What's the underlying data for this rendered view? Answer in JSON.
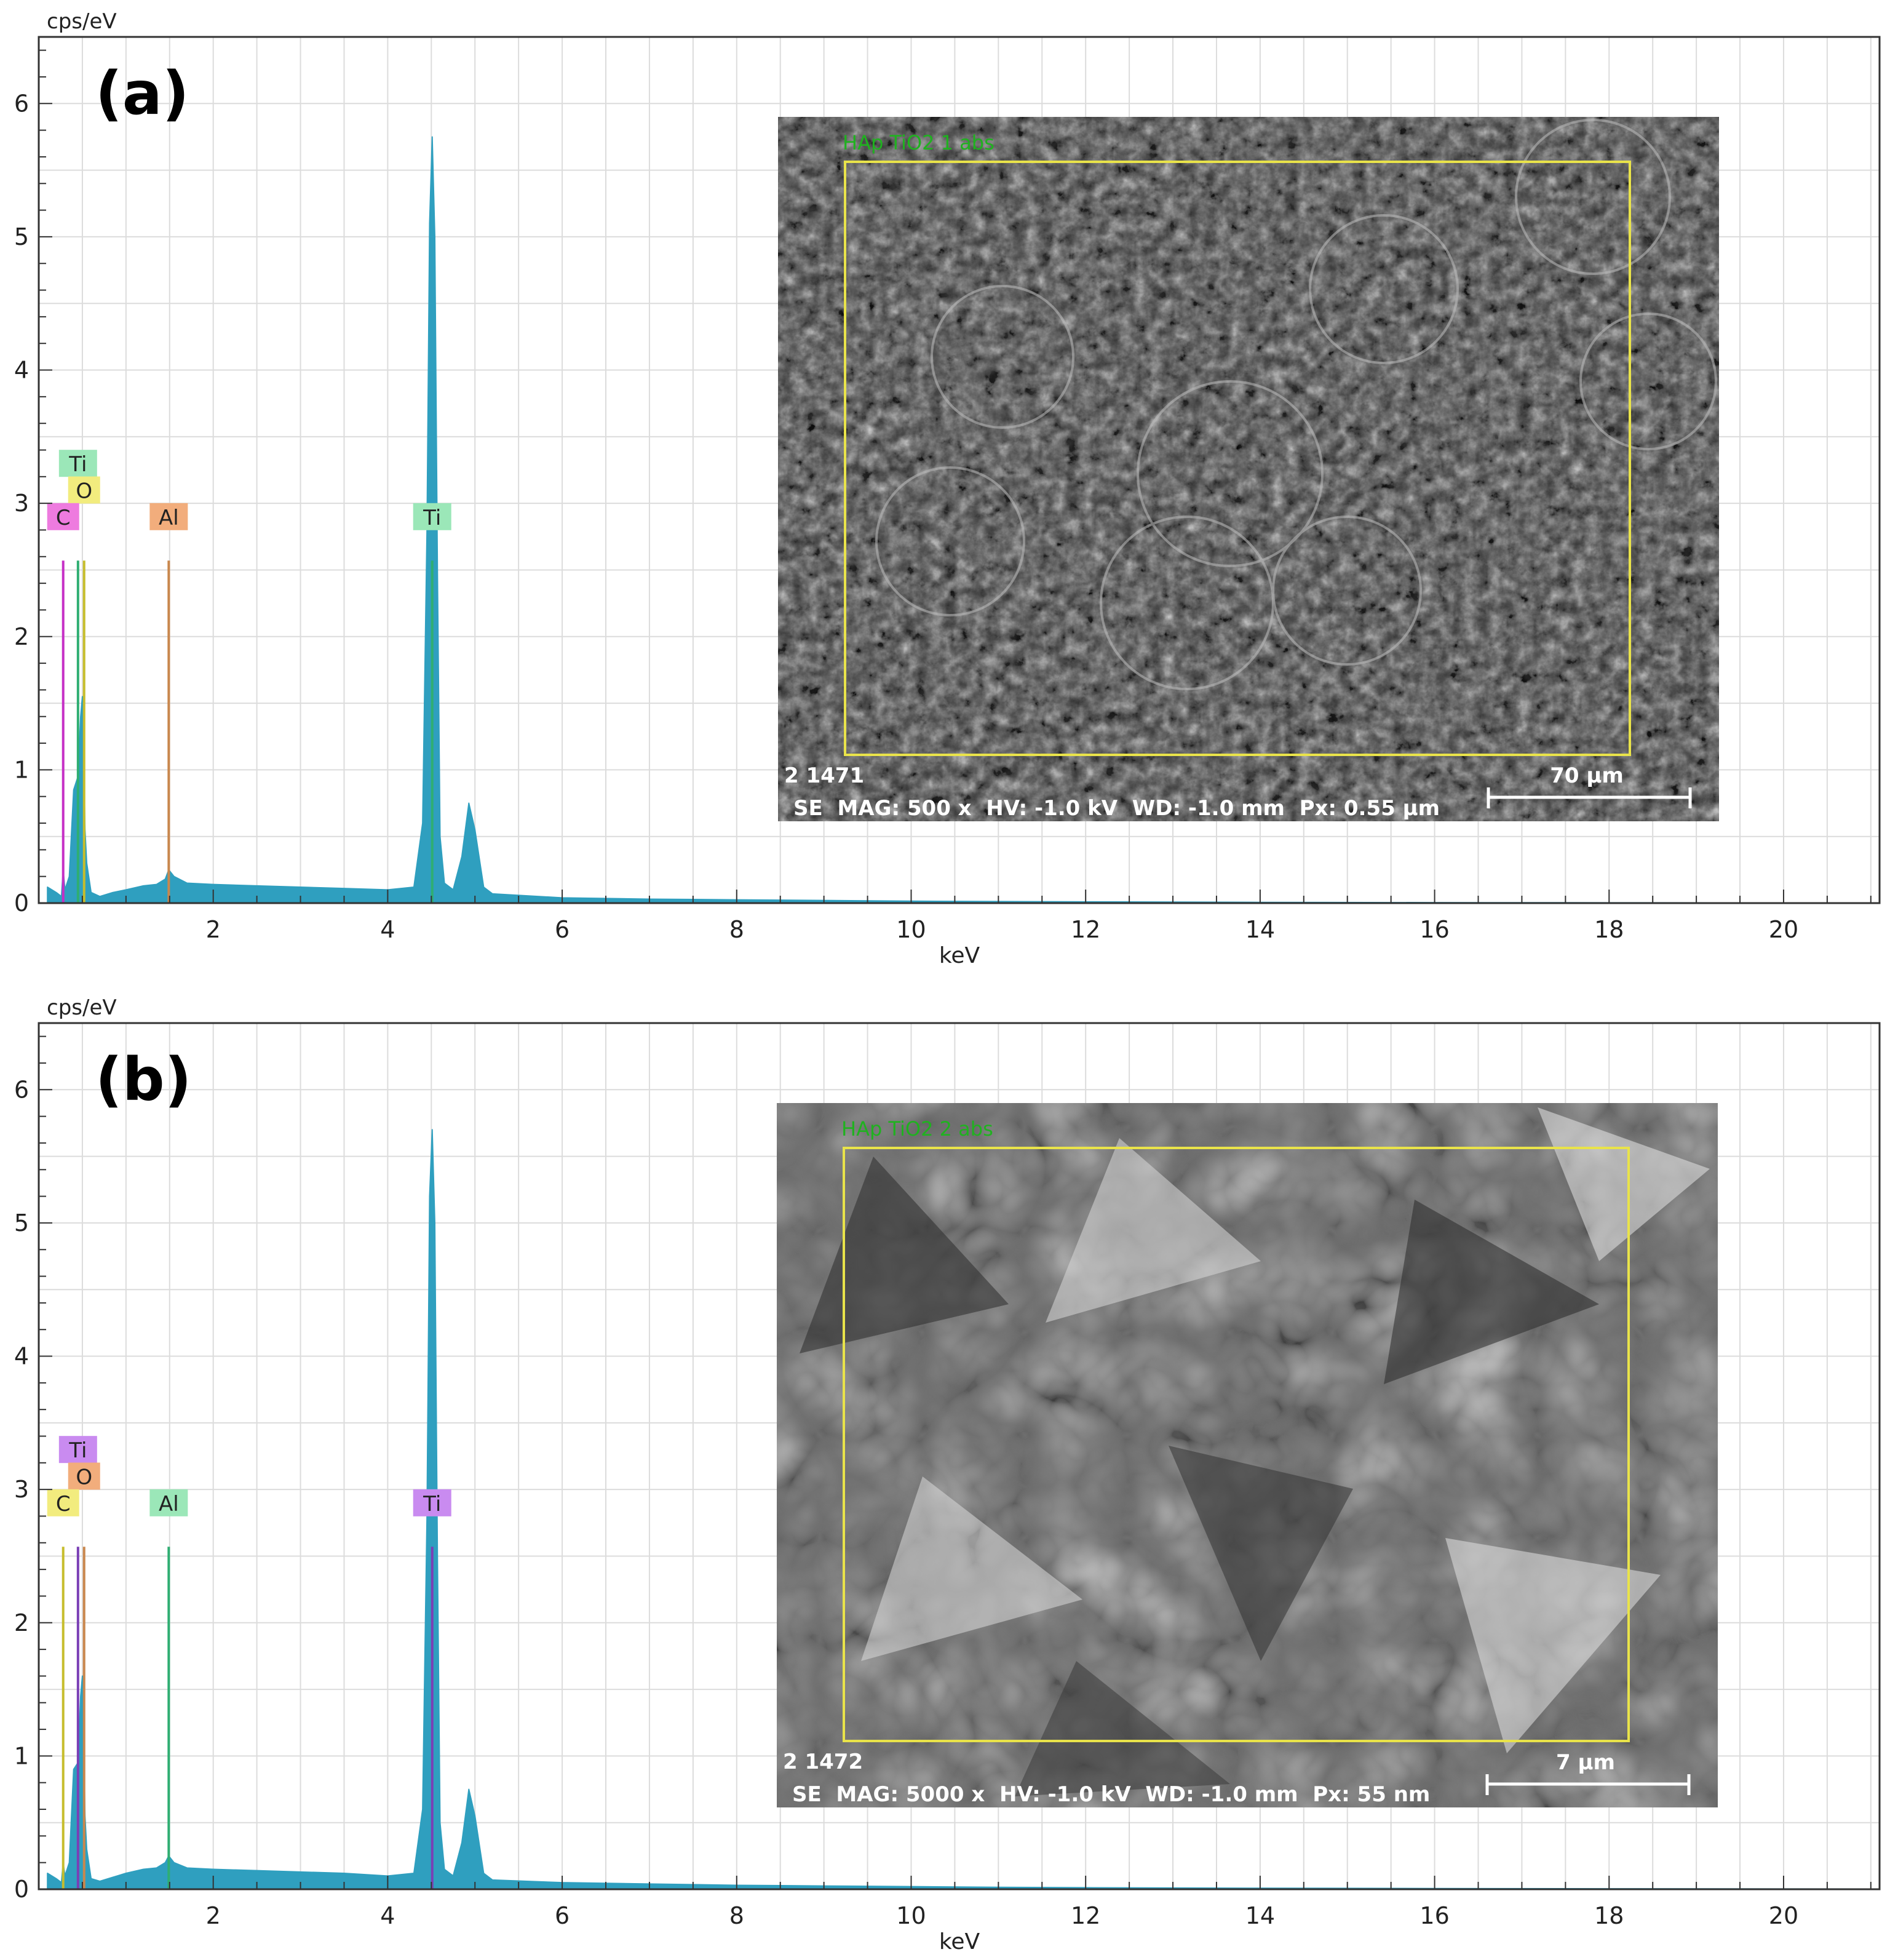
{
  "chart_data": [
    {
      "type": "area",
      "panel_label": "(a)",
      "xlabel": "keV",
      "ylabel": "cps/eV",
      "xlim": [
        0,
        21.1
      ],
      "ylim": [
        0,
        6.5
      ],
      "x_ticks": [
        "2",
        "4",
        "6",
        "8",
        "10",
        "12",
        "14",
        "16",
        "18",
        "20"
      ],
      "y_ticks": [
        "0",
        "1",
        "2",
        "3",
        "4",
        "5",
        "6"
      ],
      "grid": true,
      "series": [
        {
          "color": "#2f9fbf",
          "x": [
            0.1,
            0.2,
            0.26,
            0.28,
            0.3,
            0.35,
            0.4,
            0.45,
            0.48,
            0.5,
            0.52,
            0.53,
            0.55,
            0.6,
            0.7,
            0.85,
            1.0,
            1.2,
            1.35,
            1.45,
            1.49,
            1.55,
            1.7,
            2.0,
            2.5,
            3.0,
            3.5,
            4.0,
            4.3,
            4.4,
            4.45,
            4.48,
            4.51,
            4.54,
            4.57,
            4.6,
            4.65,
            4.75,
            4.85,
            4.93,
            5.0,
            5.1,
            5.2,
            6.0,
            7.0,
            8.0,
            9.0,
            10.0,
            11.0,
            12.0,
            13.0,
            14.0,
            16.0,
            18.0,
            20.0,
            21.1
          ],
          "y": [
            0.12,
            0.08,
            0.05,
            0.25,
            0.1,
            0.2,
            0.85,
            0.95,
            1.4,
            1.55,
            0.95,
            0.55,
            0.3,
            0.08,
            0.05,
            0.08,
            0.1,
            0.13,
            0.14,
            0.18,
            0.25,
            0.2,
            0.15,
            0.14,
            0.13,
            0.12,
            0.11,
            0.1,
            0.12,
            0.6,
            2.8,
            5.1,
            5.75,
            5.0,
            2.5,
            0.5,
            0.15,
            0.1,
            0.35,
            0.75,
            0.55,
            0.12,
            0.07,
            0.04,
            0.03,
            0.025,
            0.02,
            0.015,
            0.012,
            0.01,
            0.008,
            0.006,
            0.004,
            0.003,
            0.002,
            0.002
          ]
        }
      ],
      "element_markers": [
        {
          "label": "Ti",
          "x": 0.45,
          "line_top": 2.57,
          "color": "#9be7b8",
          "line_color": "#2fae72",
          "row": 0
        },
        {
          "label": "O",
          "x": 0.52,
          "line_top": 2.57,
          "color": "#f2ec7e",
          "line_color": "#c6bd2c",
          "row": 1
        },
        {
          "label": "C",
          "x": 0.28,
          "line_top": 2.57,
          "color": "#ee7bdf",
          "line_color": "#c52fc5",
          "row": 2
        },
        {
          "label": "Al",
          "x": 1.49,
          "line_top": 2.57,
          "color": "#f2ad7c",
          "line_color": "#c9874d",
          "row": 2
        },
        {
          "label": "Ti",
          "x": 4.51,
          "line_top": 2.57,
          "color": "#9be7b8",
          "line_color": "#2fae72",
          "row": 2
        }
      ],
      "inset_sem": {
        "title": "HAp TiO2 1 abs",
        "id_text": "2 1471",
        "info_text": "SE  MAG: 500 x  HV: -1.0 kV  WD: -1.0 mm  Px: 0.55 µm",
        "scale_bar_label": "70 µm"
      }
    },
    {
      "type": "area",
      "panel_label": "(b)",
      "xlabel": "keV",
      "ylabel": "cps/eV",
      "xlim": [
        0,
        21.1
      ],
      "ylim": [
        0,
        6.5
      ],
      "x_ticks": [
        "2",
        "4",
        "6",
        "8",
        "10",
        "12",
        "14",
        "16",
        "18",
        "20"
      ],
      "y_ticks": [
        "0",
        "1",
        "2",
        "3",
        "4",
        "5",
        "6"
      ],
      "grid": true,
      "series": [
        {
          "color": "#2f9fbf",
          "x": [
            0.1,
            0.2,
            0.26,
            0.28,
            0.3,
            0.35,
            0.4,
            0.45,
            0.48,
            0.5,
            0.52,
            0.53,
            0.55,
            0.6,
            0.7,
            0.85,
            1.0,
            1.2,
            1.35,
            1.45,
            1.49,
            1.55,
            1.7,
            2.0,
            2.5,
            3.0,
            3.5,
            4.0,
            4.3,
            4.4,
            4.45,
            4.48,
            4.51,
            4.54,
            4.57,
            4.6,
            4.65,
            4.75,
            4.85,
            4.93,
            5.0,
            5.1,
            5.2,
            6.0,
            7.0,
            8.0,
            9.0,
            10.0,
            11.0,
            12.0,
            13.0,
            14.0,
            16.0,
            18.0,
            20.0,
            21.1
          ],
          "y": [
            0.12,
            0.08,
            0.05,
            0.2,
            0.1,
            0.2,
            0.9,
            0.95,
            1.45,
            1.6,
            0.95,
            0.55,
            0.3,
            0.08,
            0.06,
            0.09,
            0.12,
            0.15,
            0.16,
            0.2,
            0.25,
            0.2,
            0.16,
            0.15,
            0.14,
            0.13,
            0.12,
            0.1,
            0.12,
            0.6,
            2.8,
            5.2,
            5.7,
            5.0,
            2.5,
            0.5,
            0.15,
            0.1,
            0.35,
            0.75,
            0.55,
            0.12,
            0.07,
            0.05,
            0.04,
            0.03,
            0.025,
            0.02,
            0.015,
            0.012,
            0.01,
            0.008,
            0.006,
            0.004,
            0.003,
            0.002
          ]
        }
      ],
      "element_markers": [
        {
          "label": "Ti",
          "x": 0.45,
          "line_top": 2.57,
          "color": "#c98bf0",
          "line_color": "#7a3fb5",
          "row": 0
        },
        {
          "label": "O",
          "x": 0.52,
          "line_top": 2.57,
          "color": "#f2ad7c",
          "line_color": "#c9874d",
          "row": 1
        },
        {
          "label": "C",
          "x": 0.28,
          "line_top": 2.57,
          "color": "#f2ec7e",
          "line_color": "#c6bd2c",
          "row": 2
        },
        {
          "label": "Al",
          "x": 1.49,
          "line_top": 2.57,
          "color": "#9be7b8",
          "line_color": "#2fae72",
          "row": 2
        },
        {
          "label": "Ti",
          "x": 4.51,
          "line_top": 2.57,
          "color": "#c98bf0",
          "line_color": "#7a3fb5",
          "row": 2
        }
      ],
      "inset_sem": {
        "title": "HAp TiO2 2 abs",
        "id_text": "2 1472",
        "info_text": "SE  MAG: 5000 x  HV: -1.0 kV  WD: -1.0 mm  Px: 55 nm",
        "scale_bar_label": "7 µm"
      }
    }
  ]
}
